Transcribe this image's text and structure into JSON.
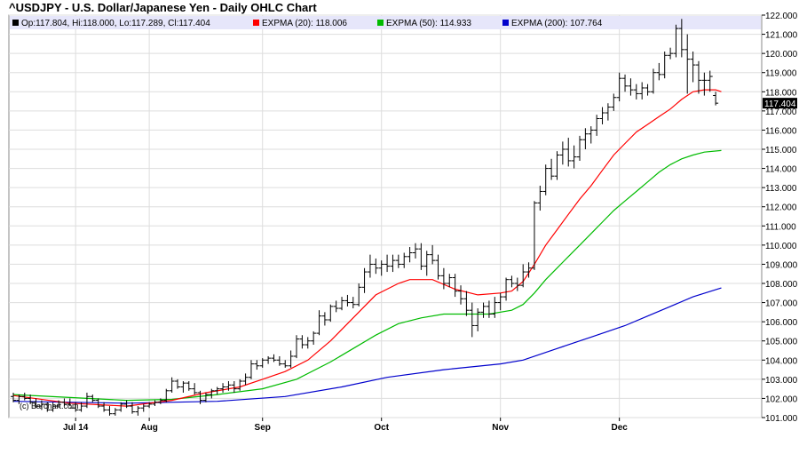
{
  "title": "^USDJPY - U.S. Dollar/Japanese Yen - Daily OHLC Chart",
  "legend": [
    {
      "label": "Op:117.804, Hi:118.000, Lo:117.289, Cl:117.404",
      "color": "#000000"
    },
    {
      "label": "EXPMA (20): 118.006",
      "color": "#ff0000"
    },
    {
      "label": "EXPMA (50): 114.933",
      "color": "#00bb00"
    },
    {
      "label": "EXPMA (200): 107.764",
      "color": "#0000cc"
    }
  ],
  "watermark": "(c) Barchart.com",
  "last_price": "117.404",
  "colors": {
    "price": "#000000",
    "ema20": "#ff0000",
    "ema50": "#00bb00",
    "ema200": "#0000cc",
    "grid": "#dddddd",
    "legend_bg": "#e6e6fa",
    "last_tag_bg": "#000000",
    "last_tag_text": "#ffffff"
  },
  "chart_data": {
    "type": "ohlc",
    "symbol": "^USDJPY",
    "ylim": [
      101.0,
      122.0
    ],
    "y_ticks": [
      "101.000",
      "102.000",
      "103.000",
      "104.000",
      "105.000",
      "106.000",
      "107.000",
      "108.000",
      "109.000",
      "110.000",
      "111.000",
      "112.000",
      "113.000",
      "114.000",
      "115.000",
      "116.000",
      "117.000",
      "118.000",
      "119.000",
      "120.000",
      "121.000",
      "122.000"
    ],
    "x_ticks": [
      {
        "label": "Jul 14",
        "index": 11
      },
      {
        "label": "Aug",
        "index": 24
      },
      {
        "label": "Sep",
        "index": 44
      },
      {
        "label": "Oct",
        "index": 65
      },
      {
        "label": "Nov",
        "index": 86
      },
      {
        "label": "Dec",
        "index": 107
      }
    ],
    "grid": true,
    "legend_position": "top",
    "ohlc": [
      [
        102.1,
        102.3,
        101.8,
        101.9
      ],
      [
        101.9,
        102.2,
        101.7,
        102.1
      ],
      [
        102.1,
        102.3,
        101.9,
        102.0
      ],
      [
        102.0,
        102.2,
        101.7,
        101.8
      ],
      [
        101.8,
        102.0,
        101.5,
        101.6
      ],
      [
        101.6,
        101.9,
        101.4,
        101.7
      ],
      [
        101.7,
        101.8,
        101.3,
        101.4
      ],
      [
        101.4,
        101.8,
        101.3,
        101.6
      ],
      [
        101.6,
        101.9,
        101.5,
        101.8
      ],
      [
        101.8,
        102.0,
        101.6,
        101.7
      ],
      [
        101.7,
        102.0,
        101.6,
        101.5
      ],
      [
        101.5,
        101.8,
        101.3,
        101.4
      ],
      [
        101.4,
        101.8,
        101.3,
        101.6
      ],
      [
        101.6,
        102.3,
        101.5,
        102.1
      ],
      [
        102.1,
        102.2,
        101.8,
        101.9
      ],
      [
        101.9,
        102.0,
        101.5,
        101.6
      ],
      [
        101.6,
        101.8,
        101.3,
        101.4
      ],
      [
        101.4,
        101.6,
        101.1,
        101.2
      ],
      [
        101.2,
        101.5,
        101.1,
        101.4
      ],
      [
        101.4,
        101.8,
        101.3,
        101.7
      ],
      [
        101.7,
        101.9,
        101.5,
        101.6
      ],
      [
        101.6,
        101.8,
        101.2,
        101.3
      ],
      [
        101.3,
        101.6,
        101.1,
        101.5
      ],
      [
        101.5,
        101.7,
        101.3,
        101.6
      ],
      [
        101.6,
        101.8,
        101.5,
        101.7
      ],
      [
        101.7,
        101.9,
        101.6,
        101.8
      ],
      [
        101.8,
        102.0,
        101.7,
        101.9
      ],
      [
        101.9,
        102.5,
        101.8,
        102.4
      ],
      [
        102.4,
        103.1,
        102.3,
        102.9
      ],
      [
        102.9,
        103.0,
        102.5,
        102.6
      ],
      [
        102.6,
        102.9,
        102.3,
        102.8
      ],
      [
        102.8,
        102.9,
        102.4,
        102.5
      ],
      [
        102.5,
        102.8,
        102.2,
        102.3
      ],
      [
        102.3,
        102.4,
        101.7,
        101.9
      ],
      [
        101.9,
        102.3,
        101.8,
        102.2
      ],
      [
        102.2,
        102.5,
        102.0,
        102.4
      ],
      [
        102.4,
        102.6,
        102.2,
        102.5
      ],
      [
        102.5,
        102.8,
        102.3,
        102.6
      ],
      [
        102.6,
        102.9,
        102.4,
        102.7
      ],
      [
        102.7,
        102.9,
        102.3,
        102.5
      ],
      [
        102.5,
        103.0,
        102.4,
        102.9
      ],
      [
        102.9,
        103.3,
        102.7,
        103.1
      ],
      [
        103.1,
        104.0,
        103.0,
        103.8
      ],
      [
        103.8,
        104.0,
        103.5,
        103.7
      ],
      [
        103.7,
        104.1,
        103.6,
        104.0
      ],
      [
        104.0,
        104.2,
        103.8,
        104.1
      ],
      [
        104.1,
        104.3,
        103.9,
        104.0
      ],
      [
        104.0,
        104.2,
        103.7,
        103.8
      ],
      [
        103.8,
        104.0,
        103.6,
        103.7
      ],
      [
        103.7,
        104.5,
        103.6,
        104.2
      ],
      [
        104.2,
        105.3,
        104.1,
        105.1
      ],
      [
        105.1,
        105.3,
        104.6,
        104.8
      ],
      [
        104.8,
        105.2,
        104.6,
        105.0
      ],
      [
        105.0,
        105.5,
        104.8,
        105.4
      ],
      [
        105.4,
        106.6,
        105.3,
        106.3
      ],
      [
        106.3,
        106.5,
        105.8,
        106.1
      ],
      [
        106.1,
        106.9,
        106.0,
        106.8
      ],
      [
        106.8,
        107.1,
        106.5,
        106.7
      ],
      [
        106.7,
        107.3,
        106.6,
        107.1
      ],
      [
        107.1,
        107.4,
        106.8,
        107.0
      ],
      [
        107.0,
        107.3,
        106.7,
        106.9
      ],
      [
        106.9,
        108.0,
        106.8,
        107.8
      ],
      [
        107.8,
        108.8,
        107.5,
        108.6
      ],
      [
        108.6,
        109.5,
        108.3,
        109.0
      ],
      [
        109.0,
        109.3,
        108.5,
        108.8
      ],
      [
        108.8,
        109.2,
        108.4,
        109.0
      ],
      [
        109.0,
        109.5,
        108.6,
        108.9
      ],
      [
        108.9,
        109.5,
        108.6,
        109.2
      ],
      [
        109.2,
        109.5,
        108.8,
        109.0
      ],
      [
        109.0,
        109.6,
        108.8,
        109.4
      ],
      [
        109.4,
        109.9,
        109.1,
        109.6
      ],
      [
        109.6,
        110.1,
        109.3,
        109.8
      ],
      [
        109.8,
        110.1,
        108.7,
        108.9
      ],
      [
        108.9,
        109.7,
        108.4,
        109.5
      ],
      [
        109.5,
        110.0,
        109.0,
        109.2
      ],
      [
        109.2,
        109.5,
        108.2,
        108.4
      ],
      [
        108.4,
        108.8,
        107.7,
        108.0
      ],
      [
        108.0,
        108.5,
        107.8,
        108.3
      ],
      [
        108.3,
        108.5,
        107.3,
        107.6
      ],
      [
        107.6,
        107.9,
        106.9,
        107.2
      ],
      [
        107.2,
        107.6,
        106.3,
        106.6
      ],
      [
        106.6,
        107.0,
        105.2,
        105.8
      ],
      [
        105.8,
        106.7,
        105.5,
        106.5
      ],
      [
        106.5,
        107.0,
        106.2,
        106.8
      ],
      [
        106.8,
        107.1,
        106.2,
        106.4
      ],
      [
        106.4,
        107.3,
        106.2,
        107.0
      ],
      [
        107.0,
        107.5,
        106.6,
        107.3
      ],
      [
        107.3,
        108.3,
        107.1,
        108.2
      ],
      [
        108.2,
        108.4,
        107.8,
        108.0
      ],
      [
        108.0,
        108.3,
        107.6,
        107.9
      ],
      [
        107.9,
        109.0,
        107.8,
        108.6
      ],
      [
        108.6,
        109.1,
        108.3,
        108.8
      ],
      [
        108.8,
        112.3,
        108.7,
        112.2
      ],
      [
        112.2,
        113.1,
        111.8,
        112.8
      ],
      [
        112.8,
        114.2,
        112.6,
        114.0
      ],
      [
        114.0,
        114.5,
        113.4,
        113.6
      ],
      [
        113.6,
        114.9,
        113.4,
        114.7
      ],
      [
        114.7,
        115.4,
        114.2,
        115.0
      ],
      [
        115.0,
        115.6,
        114.1,
        114.4
      ],
      [
        114.4,
        115.2,
        114.0,
        114.6
      ],
      [
        114.6,
        115.7,
        114.4,
        115.5
      ],
      [
        115.5,
        116.1,
        115.0,
        115.8
      ],
      [
        115.8,
        116.2,
        115.3,
        116.0
      ],
      [
        116.0,
        116.8,
        115.7,
        116.6
      ],
      [
        116.6,
        117.2,
        116.3,
        116.9
      ],
      [
        116.9,
        117.4,
        116.5,
        117.2
      ],
      [
        117.2,
        117.9,
        117.0,
        117.7
      ],
      [
        117.7,
        119.0,
        117.5,
        118.7
      ],
      [
        118.7,
        118.9,
        118.0,
        118.3
      ],
      [
        118.3,
        118.7,
        117.8,
        118.1
      ],
      [
        118.1,
        118.4,
        117.6,
        117.9
      ],
      [
        117.9,
        118.5,
        117.6,
        118.2
      ],
      [
        118.2,
        118.4,
        117.8,
        118.0
      ],
      [
        118.0,
        119.2,
        117.9,
        119.0
      ],
      [
        119.0,
        119.5,
        118.6,
        118.9
      ],
      [
        118.9,
        120.1,
        118.7,
        119.9
      ],
      [
        119.9,
        120.3,
        119.7,
        120.0
      ],
      [
        120.0,
        121.5,
        119.8,
        121.3
      ],
      [
        121.3,
        121.8,
        119.8,
        120.2
      ],
      [
        120.2,
        121.0,
        117.9,
        119.7
      ],
      [
        119.7,
        120.1,
        118.5,
        119.4
      ],
      [
        119.4,
        119.6,
        117.9,
        118.6
      ],
      [
        118.6,
        119.0,
        117.8,
        118.6
      ],
      [
        118.6,
        119.1,
        118.0,
        118.8
      ],
      [
        117.804,
        118.0,
        117.289,
        117.404
      ]
    ],
    "ema20": [
      [
        0,
        102.15
      ],
      [
        10,
        101.75
      ],
      [
        20,
        101.6
      ],
      [
        28,
        101.9
      ],
      [
        34,
        102.3
      ],
      [
        40,
        102.6
      ],
      [
        44,
        103.0
      ],
      [
        48,
        103.4
      ],
      [
        52,
        104.0
      ],
      [
        56,
        105.0
      ],
      [
        60,
        106.2
      ],
      [
        64,
        107.4
      ],
      [
        68,
        108.0
      ],
      [
        70,
        108.2
      ],
      [
        74,
        108.2
      ],
      [
        78,
        107.7
      ],
      [
        82,
        107.4
      ],
      [
        86,
        107.5
      ],
      [
        88,
        107.6
      ],
      [
        90,
        108.1
      ],
      [
        92,
        109.0
      ],
      [
        94,
        110.0
      ],
      [
        96,
        110.8
      ],
      [
        98,
        111.6
      ],
      [
        100,
        112.4
      ],
      [
        102,
        113.1
      ],
      [
        104,
        113.9
      ],
      [
        106,
        114.7
      ],
      [
        108,
        115.3
      ],
      [
        110,
        115.9
      ],
      [
        112,
        116.3
      ],
      [
        114,
        116.7
      ],
      [
        116,
        117.1
      ],
      [
        118,
        117.6
      ],
      [
        120,
        118.0
      ],
      [
        122,
        118.1
      ],
      [
        124,
        118.1
      ],
      [
        125,
        118.006
      ]
    ],
    "ema50": [
      [
        0,
        102.2
      ],
      [
        10,
        102.05
      ],
      [
        20,
        101.9
      ],
      [
        28,
        101.95
      ],
      [
        36,
        102.2
      ],
      [
        44,
        102.5
      ],
      [
        50,
        103.0
      ],
      [
        56,
        103.9
      ],
      [
        60,
        104.6
      ],
      [
        64,
        105.3
      ],
      [
        68,
        105.9
      ],
      [
        72,
        106.2
      ],
      [
        76,
        106.4
      ],
      [
        80,
        106.4
      ],
      [
        84,
        106.4
      ],
      [
        88,
        106.6
      ],
      [
        90,
        106.9
      ],
      [
        92,
        107.5
      ],
      [
        94,
        108.2
      ],
      [
        96,
        108.8
      ],
      [
        98,
        109.4
      ],
      [
        100,
        110.0
      ],
      [
        102,
        110.6
      ],
      [
        104,
        111.2
      ],
      [
        106,
        111.8
      ],
      [
        108,
        112.3
      ],
      [
        110,
        112.8
      ],
      [
        112,
        113.3
      ],
      [
        114,
        113.8
      ],
      [
        116,
        114.2
      ],
      [
        118,
        114.5
      ],
      [
        120,
        114.7
      ],
      [
        122,
        114.85
      ],
      [
        125,
        114.933
      ]
    ],
    "ema200": [
      [
        0,
        101.85
      ],
      [
        20,
        101.75
      ],
      [
        36,
        101.85
      ],
      [
        48,
        102.1
      ],
      [
        58,
        102.6
      ],
      [
        66,
        103.1
      ],
      [
        76,
        103.5
      ],
      [
        86,
        103.8
      ],
      [
        90,
        104.0
      ],
      [
        96,
        104.6
      ],
      [
        102,
        105.2
      ],
      [
        108,
        105.8
      ],
      [
        112,
        106.3
      ],
      [
        116,
        106.8
      ],
      [
        120,
        107.3
      ],
      [
        125,
        107.764
      ]
    ]
  }
}
